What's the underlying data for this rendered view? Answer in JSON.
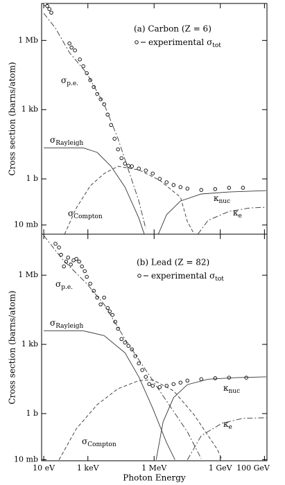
{
  "chart_data": [
    {
      "type": "line",
      "title": "(a) Carbon (Z = 6)",
      "ylabel": "Cross section (barns/atom)",
      "log_x": true,
      "log_y": true,
      "xlim": [
        8,
        130000000000.0
      ],
      "ylim": [
        0.004,
        40000000.0
      ],
      "yticks": [
        {
          "value": 0.01,
          "label": "10 mb"
        },
        {
          "value": 1,
          "label": "1 b"
        },
        {
          "value": 1000,
          "label": "1 kb"
        },
        {
          "value": 1000000,
          "label": "1 Mb"
        }
      ],
      "series": [
        {
          "name": "experimental σ",
          "subscript": "tot",
          "style": "markers",
          "color": "#000000",
          "x": [
            11.6,
            14.4,
            17.9,
            22,
            146,
            181,
            260,
            432,
            620,
            891,
            1280,
            1840,
            2640,
            3790,
            5440,
            7820,
            11200,
            16100,
            23200,
            33300,
            47800,
            68600,
            98600,
            203000,
            420000,
            865000,
            1790000,
            3680000,
            7600000,
            15700000,
            32300000,
            137000000,
            585000000,
            2490000000,
            10600000000
          ],
          "values": [
            38000000,
            31000000,
            23000000,
            16000000,
            740000,
            490000,
            370000,
            150000,
            76000,
            38000,
            19000,
            9600,
            4800,
            2800,
            1700,
            610,
            216,
            55,
            19,
            7.9,
            4.6,
            3.7,
            3.5,
            2.8,
            2.3,
            1.7,
            1,
            0.71,
            0.54,
            0.44,
            0.38,
            0.33,
            0.36,
            0.41,
            0.41
          ]
        },
        {
          "name": "σ",
          "subscript": "p.e.",
          "style": "dashdot",
          "color": "#333333",
          "x": [
            10,
            34,
            146,
            891,
            5440,
            23200,
            68600,
            203000,
            420000
          ],
          "values": [
            15000000,
            3400000,
            300000,
            38000,
            1700,
            55,
            2.45,
            0.11,
            0.007
          ]
        },
        {
          "name": "σ",
          "subscript": "Rayleigh",
          "style": "solid",
          "color": "#333333",
          "x": [
            10,
            620,
            2640,
            11200,
            47800,
            203000,
            360000
          ],
          "values": [
            22,
            22,
            14,
            3.5,
            0.44,
            0.02,
            0.004
          ]
        },
        {
          "name": "σ",
          "subscript": "Compton",
          "style": "dashed",
          "color": "#333333",
          "x": [
            88,
            300,
            1280,
            5440,
            23200,
            203000,
            1790000,
            15700000,
            32300000,
            66000000
          ],
          "values": [
            0.004,
            0.055,
            0.5,
            1.7,
            3.5,
            2.45,
            0.87,
            0.16,
            0.014,
            0.004
          ]
        },
        {
          "name": "κ",
          "subscript": "nuc",
          "style": "solid",
          "color": "#333333",
          "x": [
            1550000,
            3680000,
            15700000,
            137000000,
            2490000000,
            120000000000
          ],
          "values": [
            0.004,
            0.028,
            0.11,
            0.22,
            0.27,
            0.31
          ]
        },
        {
          "name": "κ",
          "subscript": "e",
          "style": "dashdot",
          "color": "#333333",
          "x": [
            96000000,
            280000000,
            2490000000,
            22000000000,
            120000000000
          ],
          "values": [
            0.004,
            0.016,
            0.039,
            0.055,
            0.059
          ]
        }
      ]
    },
    {
      "type": "line",
      "title": "(b) Lead (Z = 82)",
      "ylabel": "Cross section (barns/atom)",
      "xlabel": "Photon Energy",
      "log_x": true,
      "log_y": true,
      "xlim": [
        8,
        130000000000.0
      ],
      "ylim": [
        0.009,
        60000000.0
      ],
      "xticks": [
        {
          "value": 10,
          "label": "10 eV"
        },
        {
          "value": 1000,
          "label": "1 keV"
        },
        {
          "value": 1000000,
          "label": "1 MeV"
        },
        {
          "value": 1000000000,
          "label": "1 GeV"
        },
        {
          "value": 100000000000,
          "label": "100 GeV"
        }
      ],
      "yticks": [
        {
          "value": 0.01,
          "label": "10 mb"
        },
        {
          "value": 1,
          "label": "1 b"
        },
        {
          "value": 1000,
          "label": "1 kb"
        },
        {
          "value": 1000000,
          "label": "1 Mb"
        }
      ],
      "series": [
        {
          "name": "experimental σ",
          "subscript": "tot",
          "style": "markers",
          "color": "#000000",
          "x": [
            34,
            49,
            61,
            82,
            103,
            127,
            168,
            224,
            300,
            402,
            538,
            720,
            891,
            1280,
            1840,
            2640,
            3790,
            5440,
            7820,
            9700,
            13000,
            17300,
            23200,
            33300,
            47800,
            68600,
            98600,
            142000,
            203000,
            290000,
            420000,
            600000,
            865000,
            1790000,
            3680000,
            7600000,
            15700000,
            32300000,
            137000000,
            585000000,
            2490000000,
            15000000000
          ],
          "values": [
            23000000,
            16000000,
            7700000,
            2400000,
            3900000,
            5800000,
            2900000,
            4400000,
            5100000,
            3900000,
            2400000,
            1500000,
            850000,
            430000,
            210000,
            107000,
            54000,
            107000,
            38000,
            27000,
            19000,
            9600,
            4800,
            1700,
            1200,
            860,
            610,
            310,
            150,
            77,
            39,
            19,
            16,
            14,
            16,
            19,
            22,
            27,
            31,
            34,
            36,
            36
          ]
        },
        {
          "name": "σ",
          "subscript": "p.e.",
          "style": "dashdot",
          "color": "#333333",
          "x": [
            10,
            71,
            891,
            5440,
            47800,
            420000,
            3680000,
            32300000,
            137000000
          ],
          "values": [
            53000000,
            4800000,
            430000,
            54000,
            1700,
            77,
            3.5,
            0.16,
            0.011
          ]
        },
        {
          "name": "σ",
          "subscript": "Rayleigh",
          "style": "solid",
          "color": "#333333",
          "x": [
            10,
            620,
            5440,
            47800,
            203000,
            865000,
            3680000,
            8800000
          ],
          "values": [
            3900,
            3900,
            2400,
            430,
            39,
            1.7,
            0.055,
            0.0099
          ]
        },
        {
          "name": "σ",
          "subscript": "Compton",
          "style": "dashed",
          "color": "#333333",
          "x": [
            49,
            300,
            2640,
            23200,
            203000,
            865000,
            7600000,
            66000000,
            730000000,
            1200000000
          ],
          "values": [
            0.0099,
            0.22,
            2.45,
            12,
            27,
            29,
            9.7,
            0.87,
            0.028,
            0.0099
          ]
        },
        {
          "name": "κ",
          "subscript": "nuc",
          "style": "solid",
          "color": "#333333",
          "x": [
            1240000,
            2560000,
            7600000,
            32300000,
            280000000,
            5100000000,
            120000000000
          ],
          "values": [
            0.0099,
            0.44,
            4.9,
            18,
            31,
            36,
            39
          ]
        },
        {
          "name": "κ",
          "subscript": "e",
          "style": "dashdot",
          "color": "#333333",
          "x": [
            32300000,
            137000000,
            1200000000,
            10600000000,
            120000000000
          ],
          "values": [
            0.0099,
            0.11,
            0.38,
            0.62,
            0.66
          ]
        }
      ]
    }
  ]
}
